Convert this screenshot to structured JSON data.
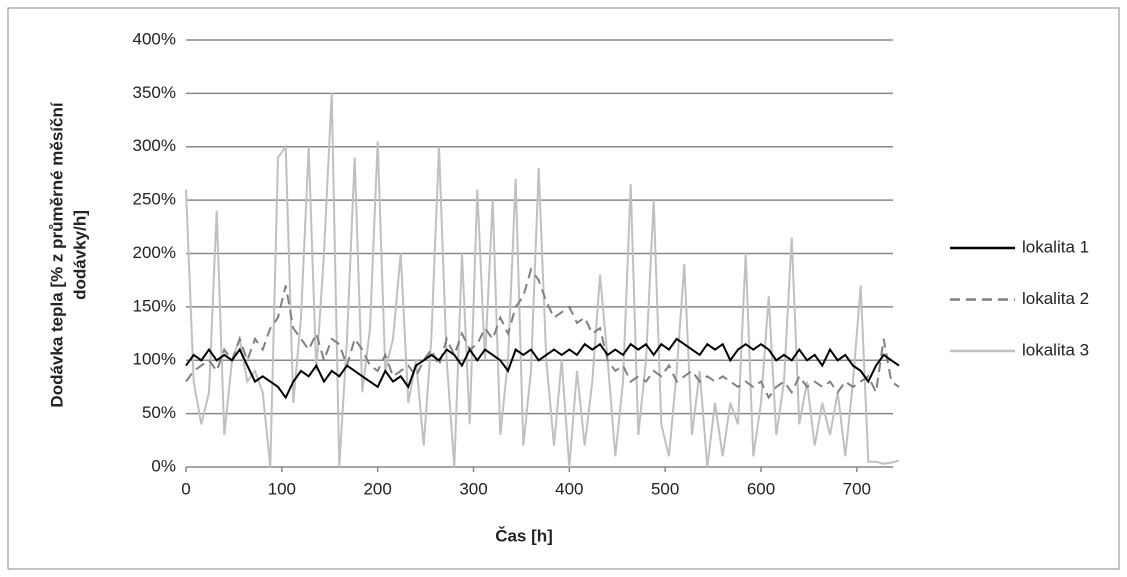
{
  "chart_data": {
    "type": "line",
    "y_label_lines": [
      "Dodávka tepla [% z průměrné měsíční",
      "dodávky/h]"
    ],
    "x_label": "Čas [h]",
    "x": [
      0,
      8,
      16,
      24,
      32,
      40,
      48,
      56,
      64,
      72,
      80,
      88,
      96,
      104,
      112,
      120,
      128,
      136,
      144,
      152,
      160,
      168,
      176,
      184,
      192,
      200,
      208,
      216,
      224,
      232,
      240,
      248,
      256,
      264,
      272,
      280,
      288,
      296,
      304,
      312,
      320,
      328,
      336,
      344,
      352,
      360,
      368,
      376,
      384,
      392,
      400,
      408,
      416,
      424,
      432,
      440,
      448,
      456,
      464,
      472,
      480,
      488,
      496,
      504,
      512,
      520,
      528,
      536,
      544,
      552,
      560,
      568,
      576,
      584,
      592,
      600,
      608,
      616,
      624,
      632,
      640,
      648,
      656,
      664,
      672,
      680,
      688,
      696,
      704,
      712,
      720,
      728,
      736,
      744
    ],
    "series": [
      {
        "name": "lokalita 1",
        "color": "#000000",
        "dash": "solid",
        "values": [
          95,
          105,
          100,
          110,
          100,
          105,
          100,
          110,
          95,
          80,
          85,
          80,
          75,
          65,
          80,
          90,
          85,
          95,
          80,
          90,
          85,
          95,
          90,
          85,
          80,
          75,
          90,
          80,
          85,
          75,
          95,
          100,
          105,
          100,
          110,
          105,
          95,
          110,
          100,
          110,
          105,
          100,
          90,
          110,
          105,
          110,
          100,
          105,
          110,
          105,
          110,
          105,
          115,
          110,
          115,
          105,
          110,
          105,
          115,
          110,
          115,
          105,
          115,
          110,
          120,
          115,
          110,
          105,
          115,
          110,
          115,
          100,
          110,
          115,
          110,
          115,
          110,
          100,
          105,
          100,
          110,
          100,
          105,
          95,
          110,
          100,
          105,
          95,
          90,
          80,
          95,
          105,
          100,
          95
        ]
      },
      {
        "name": "lokalita 2",
        "color": "#808080",
        "dash": "dashed",
        "values": [
          80,
          90,
          95,
          100,
          90,
          110,
          100,
          120,
          100,
          120,
          110,
          130,
          140,
          170,
          130,
          120,
          110,
          125,
          100,
          120,
          115,
          95,
          120,
          110,
          95,
          90,
          105,
          85,
          90,
          95,
          85,
          100,
          110,
          95,
          120,
          105,
          125,
          110,
          115,
          130,
          120,
          140,
          125,
          150,
          160,
          185,
          175,
          155,
          140,
          145,
          150,
          135,
          140,
          125,
          130,
          100,
          90,
          95,
          80,
          85,
          80,
          90,
          85,
          95,
          80,
          85,
          90,
          80,
          85,
          80,
          85,
          80,
          75,
          80,
          75,
          80,
          65,
          75,
          80,
          70,
          85,
          75,
          80,
          75,
          80,
          70,
          80,
          75,
          80,
          85,
          70,
          120,
          80,
          75
        ]
      },
      {
        "name": "lokalita 3",
        "color": "#c0c0c0",
        "dash": "solid",
        "values": [
          260,
          80,
          40,
          70,
          240,
          30,
          100,
          120,
          80,
          90,
          70,
          0,
          290,
          300,
          60,
          140,
          300,
          90,
          200,
          350,
          0,
          120,
          290,
          70,
          130,
          305,
          90,
          120,
          200,
          60,
          100,
          20,
          120,
          300,
          100,
          0,
          200,
          40,
          260,
          100,
          250,
          30,
          100,
          270,
          20,
          90,
          280,
          100,
          20,
          100,
          0,
          90,
          20,
          80,
          180,
          100,
          10,
          80,
          265,
          30,
          100,
          250,
          40,
          10,
          90,
          190,
          30,
          90,
          0,
          60,
          10,
          60,
          40,
          200,
          10,
          60,
          160,
          30,
          80,
          215,
          40,
          80,
          20,
          60,
          30,
          70,
          10,
          80,
          170,
          5,
          5,
          3,
          4,
          6
        ]
      }
    ],
    "xlim": [
      0,
      744
    ],
    "xticks": [
      0,
      100,
      200,
      300,
      400,
      500,
      600,
      700
    ],
    "ylim": [
      0,
      400
    ],
    "yticks": [
      {
        "value": 0,
        "label": "0%"
      },
      {
        "value": 50,
        "label": "50%"
      },
      {
        "value": 100,
        "label": "100%"
      },
      {
        "value": 150,
        "label": "150%"
      },
      {
        "value": 200,
        "label": "200%"
      },
      {
        "value": 250,
        "label": "250%"
      },
      {
        "value": 300,
        "label": "300%"
      },
      {
        "value": 350,
        "label": "350%"
      },
      {
        "value": 400,
        "label": "400%"
      }
    ],
    "grid": true,
    "legend": "right"
  }
}
